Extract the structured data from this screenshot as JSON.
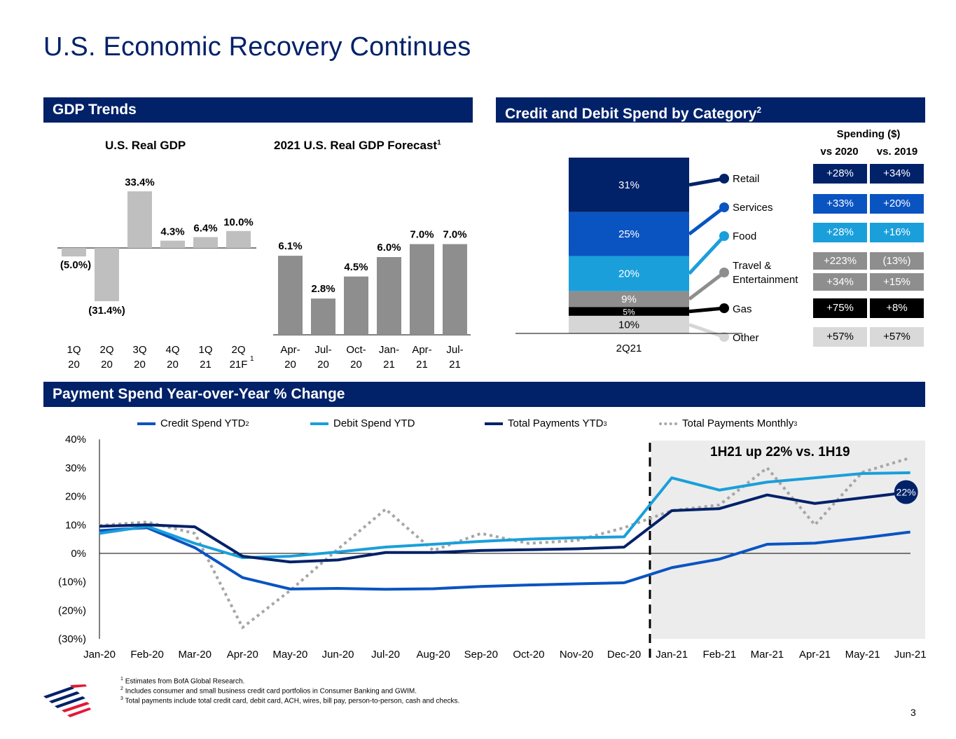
{
  "page": {
    "title": "U.S. Economic Recovery Continues",
    "page_number": "3"
  },
  "sections": {
    "gdp": "GDP Trends",
    "credit_debit": "Credit and Debit Spend by Category",
    "credit_debit_sup": "2",
    "payment": "Payment Spend Year-over-Year % Change"
  },
  "gdp_real": {
    "title": "U.S. Real GDP",
    "categories": [
      "1Q 20",
      "2Q 20",
      "3Q 20",
      "4Q 20",
      "1Q 21",
      "2Q 21F"
    ],
    "last_category_sup": "1",
    "labels": [
      "(5.0%)",
      "(31.4%)",
      "33.4%",
      "4.3%",
      "6.4%",
      "10.0%"
    ]
  },
  "gdp_forecast": {
    "title": "2021 U.S. Real GDP Forecast",
    "title_sup": "1",
    "categories": [
      "Apr- 20",
      "Jul- 20",
      "Oct- 20",
      "Jan- 21",
      "Apr- 21",
      "Jul- 21"
    ],
    "labels": [
      "6.1%",
      "2.8%",
      "4.5%",
      "6.0%",
      "7.0%",
      "7.0%"
    ]
  },
  "spend_category": {
    "x_label": "2Q21",
    "header": "Spending ($)",
    "col1": "vs 2020",
    "col2": "vs. 2019",
    "segments": [
      {
        "name": "Retail",
        "label": "31%",
        "color": "#012169"
      },
      {
        "name": "Services",
        "label": "25%",
        "color": "#0a54c2"
      },
      {
        "name": "Food",
        "label": "20%",
        "color": "#1a9fdb"
      },
      {
        "name": "Travel & Entertainment",
        "label": "9%",
        "color": "#8e8e8e"
      },
      {
        "name": "Gas",
        "label": "5%",
        "color": "#000000"
      },
      {
        "name": "Other",
        "label": "10%",
        "color": "#d6d6d6"
      }
    ],
    "rows": [
      {
        "v2020": "+28%",
        "v2019": "+34%"
      },
      {
        "v2020": "+33%",
        "v2019": "+20%"
      },
      {
        "v2020": "+28%",
        "v2019": "+16%"
      },
      {
        "v2020": "+223%",
        "v2019": "(13%)"
      },
      {
        "v2020": "+34%",
        "v2019": "+15%"
      },
      {
        "v2020": "+75%",
        "v2019": "+8%"
      },
      {
        "v2020": "+57%",
        "v2019": "+57%"
      }
    ]
  },
  "legend": {
    "credit": "Credit Spend YTD",
    "credit_sup": "2",
    "debit": "Debit Spend YTD",
    "total": "Total Payments YTD",
    "total_sup": "3",
    "monthly": "Total Payments Monthly",
    "monthly_sup": "3"
  },
  "annotation": {
    "text": "1H21 up 22% vs. 1H19",
    "badge": "22%"
  },
  "footnotes": {
    "n1": "Estimates from BofA Global Research.",
    "n2": "Includes consumer and small business credit card portfolios in Consumer Banking and GWIM.",
    "n3": "Total payments include total credit card, debit card, ACH, wires, bill pay, person-to-person, cash and checks."
  },
  "colors": {
    "navy": "#012169",
    "credit": "#0a54c2",
    "debit": "#1a9fdb",
    "monthly": "#a6a6a6",
    "real_gdp_bar": "#bfbfbf",
    "forecast_bar": "#8e8e8e"
  },
  "chart_data": [
    {
      "type": "bar",
      "title": "U.S. Real GDP",
      "categories": [
        "1Q 20",
        "2Q 20",
        "3Q 20",
        "4Q 20",
        "1Q 21",
        "2Q 21F"
      ],
      "values": [
        -5.0,
        -31.4,
        33.4,
        4.3,
        6.4,
        10.0
      ]
    },
    {
      "type": "bar",
      "title": "2021 U.S. Real GDP Forecast",
      "categories": [
        "Apr-20",
        "Jul-20",
        "Oct-20",
        "Jan-21",
        "Apr-21",
        "Jul-21"
      ],
      "values": [
        6.1,
        2.8,
        4.5,
        6.0,
        7.0,
        7.0
      ]
    },
    {
      "type": "bar",
      "title": "Credit and Debit Spend by Category",
      "categories": [
        "2Q21"
      ],
      "series": [
        {
          "name": "Retail",
          "values": [
            31
          ]
        },
        {
          "name": "Services",
          "values": [
            25
          ]
        },
        {
          "name": "Food",
          "values": [
            20
          ]
        },
        {
          "name": "Travel & Entertainment",
          "values": [
            9
          ]
        },
        {
          "name": "Gas",
          "values": [
            5
          ]
        },
        {
          "name": "Other",
          "values": [
            10
          ]
        }
      ]
    },
    {
      "type": "line",
      "title": "Payment Spend Year-over-Year % Change",
      "x": [
        "Jan-20",
        "Feb-20",
        "Mar-20",
        "Apr-20",
        "May-20",
        "Jun-20",
        "Jul-20",
        "Aug-20",
        "Sep-20",
        "Oct-20",
        "Nov-20",
        "Dec-20",
        "Jan-21",
        "Feb-21",
        "Mar-21",
        "Apr-21",
        "May-21",
        "Jun-21"
      ],
      "ylim": [
        -30,
        40
      ],
      "yticks": [
        "40%",
        "30%",
        "20%",
        "10%",
        "0%",
        "(10%)",
        "(20%)",
        "(30%)"
      ],
      "ytick_values": [
        40,
        30,
        20,
        10,
        0,
        -10,
        -20,
        -30
      ],
      "series": [
        {
          "name": "Credit Spend YTD",
          "values": [
            8,
            9,
            2,
            -8.5,
            -12.5,
            -12.3,
            -12.6,
            -12.4,
            -11.6,
            -11.1,
            -10.7,
            -10.3,
            -5,
            -2,
            3.2,
            3.6,
            5.4,
            7.5
          ]
        },
        {
          "name": "Debit Spend YTD",
          "values": [
            7,
            9.5,
            3.5,
            -1.5,
            -1,
            0.5,
            2.2,
            3.2,
            4.2,
            5,
            5.5,
            5.8,
            26.5,
            22.2,
            25,
            26.5,
            28,
            28.3
          ]
        },
        {
          "name": "Total Payments YTD",
          "values": [
            9.5,
            10,
            9.3,
            -1,
            -3,
            -2.3,
            0.3,
            0.3,
            1,
            1.3,
            1.6,
            2.2,
            15,
            15.7,
            20.5,
            17.5,
            19.5,
            21.5
          ]
        },
        {
          "name": "Total Payments Monthly",
          "values": [
            9.8,
            11,
            7,
            -26,
            -13,
            1.5,
            15.5,
            1,
            7,
            3.5,
            4.5,
            9,
            15,
            17,
            30,
            10,
            28.5,
            33.5
          ]
        }
      ]
    }
  ]
}
